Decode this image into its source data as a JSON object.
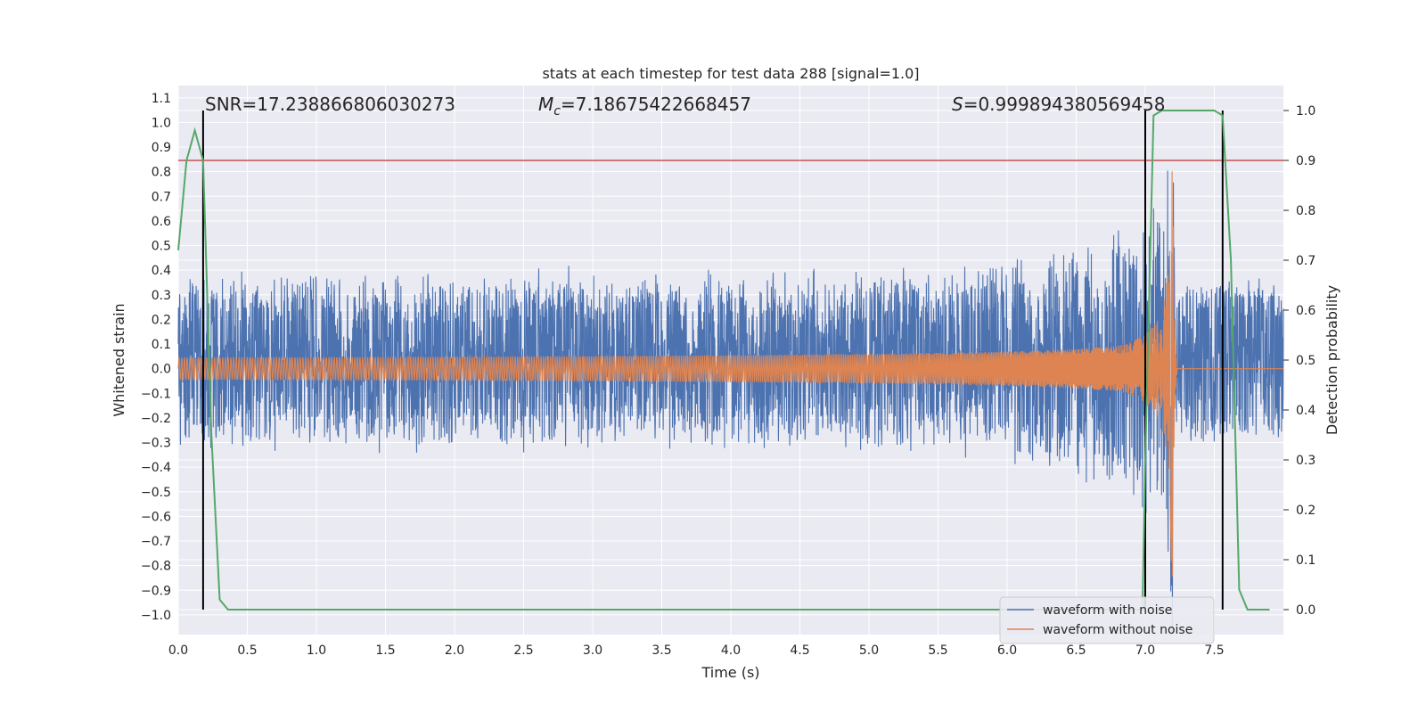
{
  "chart_data": {
    "type": "line",
    "title": "stats at each timestep for test data 288 [signal=1.0]",
    "xlabel": "Time (s)",
    "ylabel": "Whitened strain",
    "y2label": "Detection probability",
    "xlim": [
      0.0,
      8.0
    ],
    "ylim": [
      -1.08,
      1.15
    ],
    "y2lim": [
      -0.05,
      1.05
    ],
    "x_ticks": [
      "0.0",
      "0.5",
      "1.0",
      "1.5",
      "2.0",
      "2.5",
      "3.0",
      "3.5",
      "4.0",
      "4.5",
      "5.0",
      "5.5",
      "6.0",
      "6.5",
      "7.0",
      "7.5"
    ],
    "y_ticks": [
      "1.1",
      "1.0",
      "0.9",
      "0.8",
      "0.7",
      "0.6",
      "0.5",
      "0.4",
      "0.3",
      "0.2",
      "0.1",
      "0.0",
      "−0.1",
      "−0.2",
      "−0.3",
      "−0.4",
      "−0.5",
      "−0.6",
      "−0.7",
      "−0.8",
      "−0.9",
      "−1.0"
    ],
    "y2_ticks": [
      "1.0",
      "0.9",
      "0.8",
      "0.7",
      "0.6",
      "0.5",
      "0.4",
      "0.3",
      "0.2",
      "0.1",
      "0.0"
    ],
    "grid": true,
    "legend_position": "bottom-right",
    "annotations": {
      "snr": "SNR=17.238866806030273",
      "mc_symbol": "M",
      "mc_sub": "c",
      "mc_value": "=7.18675422668457",
      "s_symbol": "S",
      "s_value": "=0.999894380569458"
    },
    "threshold": 0.9,
    "vlines": [
      0.18,
      7.0,
      7.56
    ],
    "merger_time": 7.2,
    "series": [
      {
        "name": "waveform with noise",
        "color": "#4c72b0",
        "noise_amplitude": 0.27
      },
      {
        "name": "waveform without noise",
        "color": "#dd8452"
      },
      {
        "color": "#55a868",
        "x": [
          0.0,
          0.06,
          0.12,
          0.18,
          0.24,
          0.3,
          0.36,
          0.5,
          1.0,
          2.0,
          3.0,
          4.0,
          5.0,
          6.0,
          6.98,
          7.0,
          7.06,
          7.12,
          7.2,
          7.3,
          7.4,
          7.5,
          7.56,
          7.62,
          7.68,
          7.74,
          7.8,
          7.9
        ],
        "y": [
          0.72,
          0.9,
          0.96,
          0.9,
          0.35,
          0.02,
          0.0,
          0.0,
          0.0,
          0.0,
          0.0,
          0.0,
          0.0,
          0.0,
          0.0,
          0.3,
          0.99,
          1.0,
          1.0,
          1.0,
          1.0,
          1.0,
          0.99,
          0.7,
          0.04,
          0.0,
          0.0,
          0.0
        ]
      }
    ],
    "colors": {
      "plot_bg": "#eaeaf2",
      "grid": "#ffffff",
      "threshold": "#c44e52",
      "vline": "#000000"
    }
  }
}
